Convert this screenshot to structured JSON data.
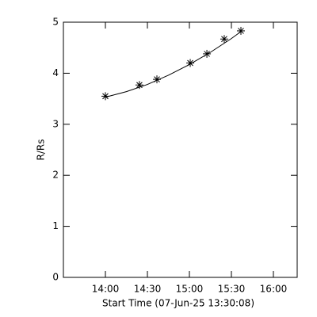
{
  "chart_data": {
    "type": "line",
    "xlabel": "Start Time (07-Jun-25 13:30:08)",
    "ylabel": "R/Rs",
    "xlim": [
      0,
      167
    ],
    "ylim": [
      0,
      5
    ],
    "xticks": [
      {
        "value": 30,
        "label": "14:00"
      },
      {
        "value": 60,
        "label": "14:30"
      },
      {
        "value": 90,
        "label": "15:00"
      },
      {
        "value": 120,
        "label": "15:30"
      },
      {
        "value": 150,
        "label": "16:00"
      }
    ],
    "yticks": [
      0,
      1,
      2,
      3,
      4,
      5
    ],
    "grid": false,
    "series": [
      {
        "color": "#000000",
        "marker": "asterisk",
        "x": [
          30,
          54.3,
          66.8,
          90.6,
          102.5,
          114.9,
          126.8
        ],
        "values": [
          3.55,
          3.77,
          3.88,
          4.2,
          4.38,
          4.67,
          4.83
        ]
      },
      {
        "color": "#000000",
        "marker": "none",
        "x": [
          30,
          45,
          60,
          75,
          90,
          105,
          120,
          127
        ],
        "values": [
          3.53,
          3.64,
          3.78,
          3.96,
          4.17,
          4.41,
          4.68,
          4.82
        ]
      }
    ]
  }
}
